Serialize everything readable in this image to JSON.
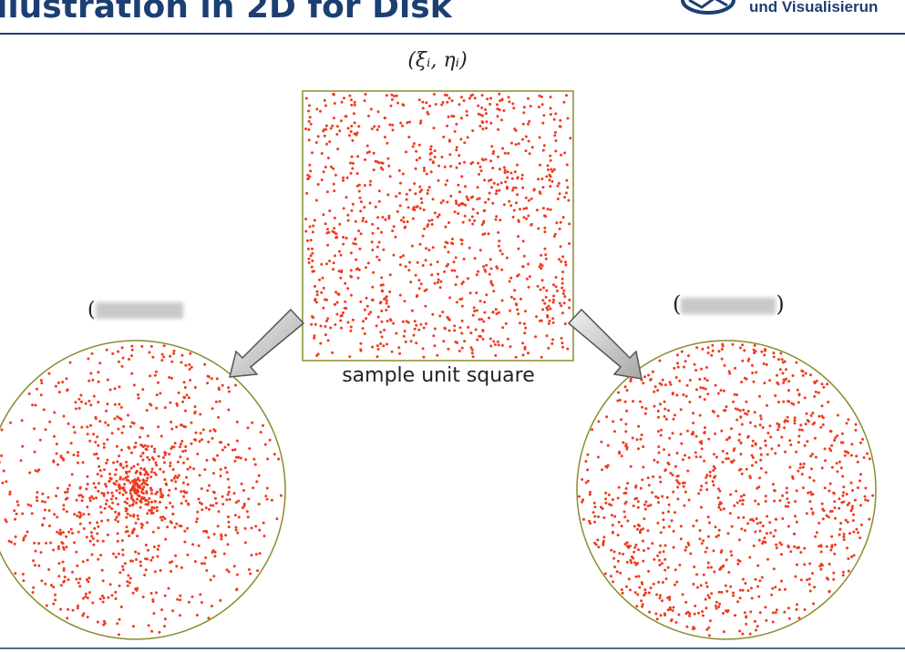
{
  "slide": {
    "title": "llustration in 2D for Disk",
    "org_text": "und Visualisierun"
  },
  "labels": {
    "square_top": "(ξᵢ, ηᵢ)",
    "square_caption": "sample unit square",
    "left_open": "(",
    "left_close": "",
    "right_open": "(",
    "right_close": ")"
  },
  "colors": {
    "point": "#ee3b1f",
    "outline": "#8b8b2d",
    "title": "#1c3f73",
    "arrow_fill": "#cfcfcf",
    "arrow_stroke": "#555555"
  },
  "icons": {
    "logo": "institute-logo-icon",
    "arrow_left": "arrow-down-left-icon",
    "arrow_right": "arrow-down-right-icon"
  }
}
